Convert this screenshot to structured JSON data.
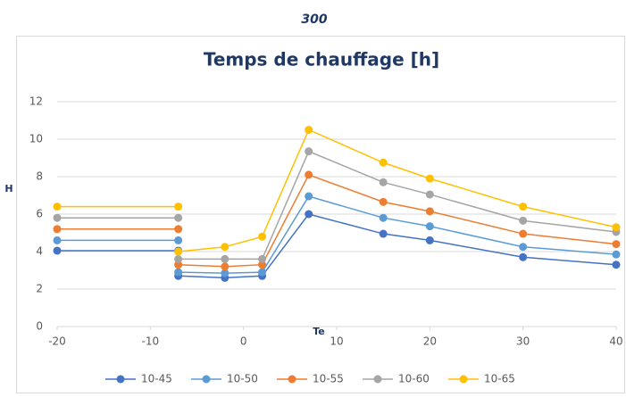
{
  "header": "300",
  "chart_data": {
    "type": "line",
    "title": "Temps de chauffage [h]",
    "y_label": "H",
    "x_label": "Te",
    "x": [
      -20,
      -7,
      -7,
      -7,
      -2,
      2,
      7,
      15,
      20,
      30,
      40
    ],
    "series": [
      {
        "name": "10-45",
        "color": "#4472c4",
        "values": [
          4.05,
          4.05,
          null,
          2.7,
          2.6,
          2.7,
          6.0,
          4.95,
          4.6,
          3.7,
          3.3
        ]
      },
      {
        "name": "10-50",
        "color": "#5b9bd5",
        "values": [
          4.6,
          4.6,
          null,
          2.9,
          2.85,
          2.9,
          6.95,
          5.8,
          5.35,
          4.25,
          3.85
        ]
      },
      {
        "name": "10-55",
        "color": "#ed7d31",
        "values": [
          5.2,
          5.2,
          null,
          3.3,
          3.2,
          3.3,
          8.1,
          6.65,
          6.15,
          4.95,
          4.4
        ]
      },
      {
        "name": "10-60",
        "color": "#a5a5a5",
        "values": [
          5.8,
          5.8,
          null,
          3.6,
          3.6,
          3.6,
          9.35,
          7.7,
          7.05,
          5.65,
          5.05
        ]
      },
      {
        "name": "10-65",
        "color": "#ffc000",
        "values": [
          6.4,
          6.4,
          null,
          4.0,
          4.25,
          4.8,
          10.5,
          8.75,
          7.9,
          6.4,
          5.3
        ]
      }
    ],
    "xlim": [
      -20,
      40
    ],
    "xticks": [
      -20,
      -10,
      0,
      10,
      20,
      30,
      40
    ],
    "ylim": [
      0,
      12
    ],
    "yticks": [
      0,
      2,
      4,
      6,
      8,
      10,
      12
    ],
    "grid": true,
    "legend": "bottom"
  }
}
